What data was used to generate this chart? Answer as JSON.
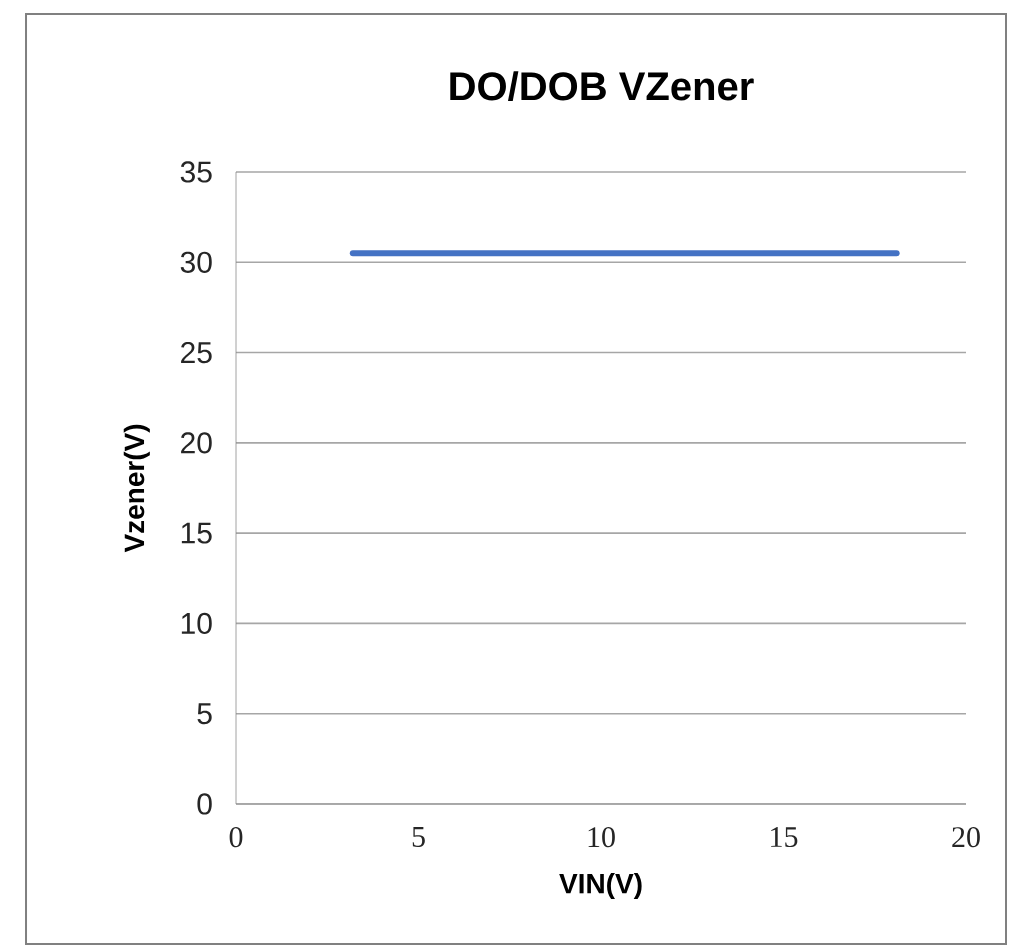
{
  "chart_data": {
    "type": "line",
    "title": "DO/DOB VZener",
    "xlabel": "VIN(V)",
    "ylabel": "Vzener(V)",
    "x": [
      3.2,
      18.1
    ],
    "series": [
      {
        "color": "#4472c4",
        "values": [
          30.5,
          30.5
        ]
      }
    ],
    "xlim": [
      0,
      20
    ],
    "ylim": [
      0,
      35
    ],
    "xticks": [
      0,
      5,
      10,
      15,
      20
    ],
    "yticks": [
      0,
      5,
      10,
      15,
      20,
      25,
      30,
      35
    ],
    "grid": "y"
  }
}
